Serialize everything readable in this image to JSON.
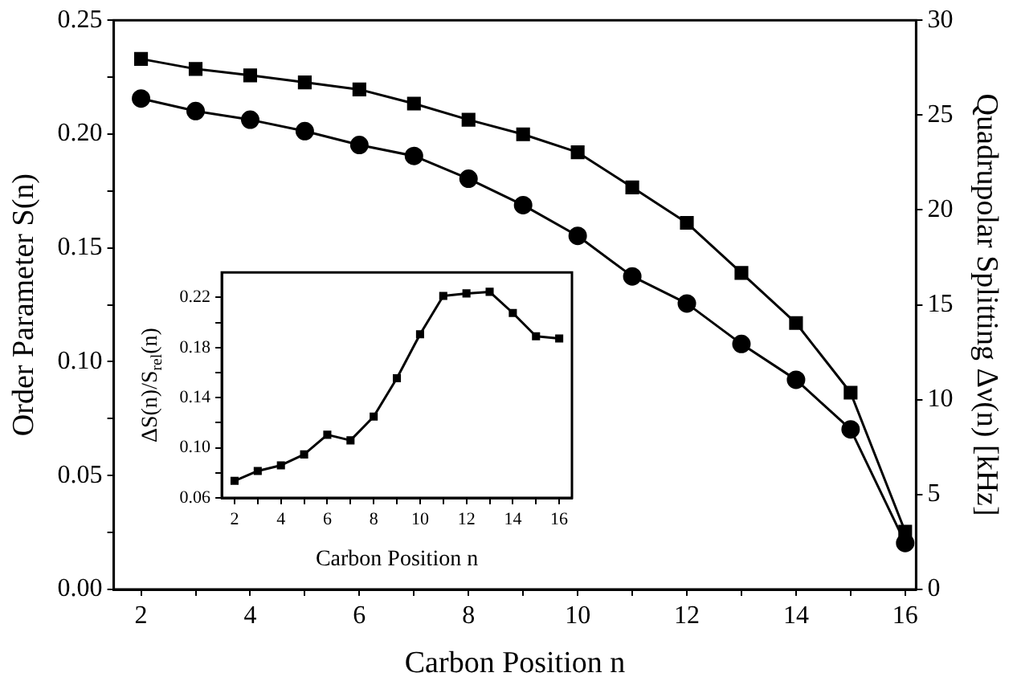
{
  "chart_data": [
    {
      "type": "line",
      "xlabel": "Carbon Position n",
      "ylabel": "Order Parameter S(n)",
      "y2label": "Quadrupolar Splitting Δν(n) [kHz]",
      "x": [
        2,
        3,
        4,
        5,
        6,
        7,
        8,
        9,
        10,
        11,
        12,
        13,
        14,
        15,
        16
      ],
      "series": [
        {
          "color": "#000000",
          "marker": "square",
          "values": [
            0.233,
            0.2286,
            0.2258,
            0.2227,
            0.2196,
            0.2134,
            0.2063,
            0.1999,
            0.192,
            0.1766,
            0.161,
            0.139,
            0.117,
            0.0864,
            0.0254
          ]
        },
        {
          "color": "#000000",
          "marker": "circle",
          "values": [
            0.2156,
            0.2101,
            0.2063,
            0.2013,
            0.1952,
            0.1904,
            0.1804,
            0.1688,
            0.1553,
            0.1375,
            0.1256,
            0.1078,
            0.0921,
            0.0703,
            0.0204
          ]
        }
      ],
      "xlim": [
        1.5,
        16.2
      ],
      "xticks": [
        2,
        {
          "value": 3,
          "label": null
        },
        4,
        {
          "value": 5,
          "label": null
        },
        6,
        {
          "value": 7,
          "label": null
        },
        8,
        {
          "value": 9,
          "label": null
        },
        10,
        {
          "value": 11,
          "label": null
        },
        12,
        {
          "value": 13,
          "label": null
        },
        14,
        {
          "value": 15,
          "label": null
        },
        16
      ],
      "ylim": [
        0,
        0.25
      ],
      "yticks": [
        {
          "value": 0,
          "label": "0.00"
        },
        {
          "value": 0.025,
          "label": null
        },
        {
          "value": 0.05,
          "label": "0.05"
        },
        {
          "value": 0.075,
          "label": null
        },
        {
          "value": 0.1,
          "label": "0.10"
        },
        {
          "value": 0.125,
          "label": null
        },
        {
          "value": 0.15,
          "label": "0.15"
        },
        {
          "value": 0.175,
          "label": null
        },
        {
          "value": 0.2,
          "label": "0.20"
        },
        {
          "value": 0.225,
          "label": null
        },
        {
          "value": 0.25,
          "label": "0.25"
        }
      ],
      "y2lim": [
        0,
        30
      ],
      "y2ticks": [
        0,
        5,
        10,
        15,
        20,
        25,
        30
      ],
      "grid": false,
      "legend": false,
      "line_style": "solid"
    },
    {
      "type": "line",
      "xlabel": "Carbon Position n",
      "ylabel": "ΔS(n)/S$_{rel}$(n)",
      "x": [
        2,
        3,
        4,
        5,
        6,
        7,
        8,
        9,
        10,
        11,
        12,
        13,
        14,
        15,
        16
      ],
      "series": [
        {
          "color": "#000000",
          "marker": "square",
          "values": [
            0.0736,
            0.0815,
            0.086,
            0.0947,
            0.1104,
            0.1059,
            0.1249,
            0.1555,
            0.1906,
            0.2212,
            0.2232,
            0.2245,
            0.2076,
            0.189,
            0.1873
          ]
        }
      ],
      "xlim": [
        1.45,
        16.55
      ],
      "xticks": [
        2,
        {
          "value": 3,
          "label": null
        },
        4,
        {
          "value": 5,
          "label": null
        },
        6,
        {
          "value": 7,
          "label": null
        },
        8,
        {
          "value": 9,
          "label": null
        },
        10,
        {
          "value": 11,
          "label": null
        },
        12,
        {
          "value": 13,
          "label": null
        },
        14,
        {
          "value": 15,
          "label": null
        },
        16
      ],
      "ylim": [
        0.06,
        0.24
      ],
      "yticks": [
        {
          "value": 0.06,
          "label": "0.06"
        },
        {
          "value": 0.08,
          "label": null
        },
        {
          "value": 0.1,
          "label": "0.10"
        },
        {
          "value": 0.12,
          "label": null
        },
        {
          "value": 0.14,
          "label": "0.14"
        },
        {
          "value": 0.16,
          "label": null
        },
        {
          "value": 0.18,
          "label": "0.18"
        },
        {
          "value": 0.2,
          "label": null
        },
        {
          "value": 0.22,
          "label": "0.22"
        }
      ],
      "grid": false,
      "legend": false,
      "line_style": "solid"
    }
  ]
}
